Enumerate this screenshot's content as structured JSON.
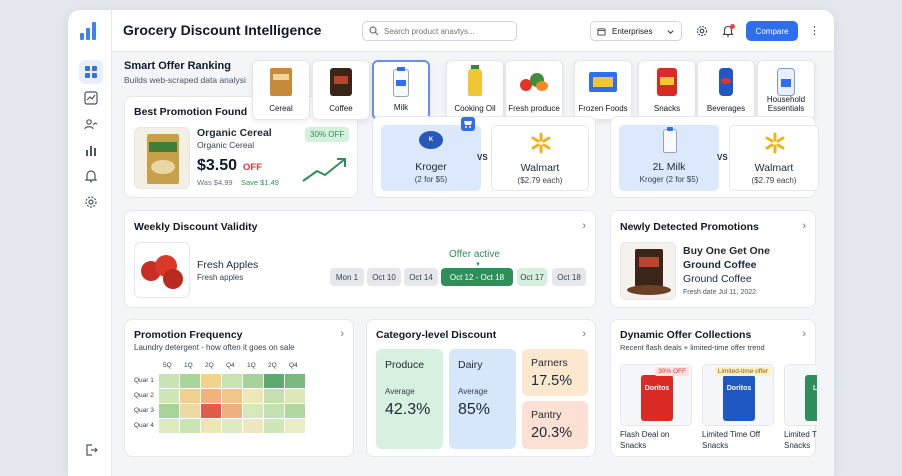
{
  "app": {
    "title": "Grocery Discount Intelligence"
  },
  "search": {
    "placeholder": "Search product anavtys..."
  },
  "dropdown": {
    "value": "Enterprises"
  },
  "compare_label": "Compare",
  "smart_offer": {
    "title": "Smart Offer Ranking",
    "subtitle": "Builds web-scraped data analysi"
  },
  "categories": [
    {
      "label": "Cereal",
      "icon": "cereal-box-icon"
    },
    {
      "label": "Coffee",
      "icon": "coffee-bag-icon"
    },
    {
      "label": "Milk",
      "icon": "milk-jug-icon",
      "active": true
    },
    {
      "label": "Cooking Oil",
      "icon": "oil-bottle-icon"
    },
    {
      "label": "Fresh produce",
      "icon": "vegetables-icon"
    },
    {
      "label": "Frozen Foods",
      "icon": "frozen-box-icon"
    },
    {
      "label": "Snacks",
      "icon": "chips-bag-icon"
    },
    {
      "label": "Beverages",
      "icon": "soda-can-icon"
    },
    {
      "label": "Household Essentials",
      "icon": "detergent-bottle-icon"
    }
  ],
  "best_promo": {
    "title": "Best Promotion Found",
    "product": "Organic Cereal",
    "product_sub": "Organic Cereal",
    "badge": "30% OFF",
    "price": "$3.50",
    "off": "OFF",
    "was": "Was $4.99",
    "save": "Save $1.49"
  },
  "compare1": {
    "left_store": "Kroger",
    "left_deal": "(2 for $5)",
    "vs": "VS",
    "right_store": "Walmart",
    "right_deal": "($2.79 each)"
  },
  "compare2": {
    "left_store": "2L Milk",
    "left_deal": "Kroger (2 for $5)",
    "vs": "VS",
    "right_store": "Walmart",
    "right_deal": "($2.79 each)"
  },
  "weekly": {
    "title": "Weekly Discount Validity",
    "product": "Fresh Apples",
    "product_sub": "Fresh apples",
    "offer_label": "Offer active",
    "dates": [
      "Mon 1",
      "Oct 10",
      "Oct 14",
      "Oct 12 - Oct 18",
      "Oct 17",
      "Oct 18"
    ]
  },
  "newly": {
    "title": "Newly Detected Promotions",
    "line1": "Buy One Get One",
    "line2": "Ground Coffee",
    "line3": "Ground Coffee",
    "date": "Fresh date Jul 11, 2022"
  },
  "freq": {
    "title": "Promotion Frequency",
    "subtitle": "Laundry detergent - how often it goes on sale",
    "cols": [
      "5Q",
      "1Q",
      "2Q",
      "Q4",
      "1Q",
      "2Q",
      "Q4"
    ],
    "rows": [
      "Quar 1",
      "Quar 2",
      "Quar 3",
      "Quar 4"
    ],
    "colors": [
      [
        "#c9e3b4",
        "#a9d59a",
        "#f3d28c",
        "#c8e2b0",
        "#a7d39a",
        "#5faa6e",
        "#79b97e"
      ],
      [
        "#cfe6b6",
        "#f0cf8f",
        "#f2b27c",
        "#f0c58a",
        "#eee8b8",
        "#c5e0b0",
        "#dce8b6"
      ],
      [
        "#a8d39a",
        "#edd9a2",
        "#e25c4b",
        "#eeb07e",
        "#d7e8b8",
        "#c3e1b0",
        "#b1d8a0"
      ],
      [
        "#dcebc0",
        "#c9e5b4",
        "#eee6b5",
        "#dcebc3",
        "#eee8be",
        "#cfe6b6",
        "#e8edc4"
      ]
    ]
  },
  "category_discount": {
    "title": "Category-level Discount",
    "produce_label": "Produce",
    "produce_sub": "Average",
    "produce_value": "42.3%",
    "dairy_label": "Dairy",
    "dairy_sub": "Average",
    "dairy_value": "85%",
    "partners_label": "Parners",
    "partners_value": "17.5%",
    "pantry_label": "Pantry",
    "pantry_value": "20.3%"
  },
  "dynamic": {
    "title": "Dynamic Offer Collections",
    "subtitle": "Recent flash deals + limited-time offer trend",
    "items": [
      {
        "badge": "30% OFF",
        "brand": "Doritos",
        "label1": "Flash Deal on",
        "label2": "Snacks"
      },
      {
        "badge": "Limited-time offer",
        "brand": "Doritos",
        "label1": "Limited Time Off",
        "label2": "Snacks"
      },
      {
        "badge": "",
        "brand": "Lays",
        "label1": "Limited T",
        "label2": "Snacks"
      }
    ]
  },
  "colors": {
    "accent": "#2f6fed",
    "green": "#2f8f5b",
    "red": "#e0352b"
  }
}
